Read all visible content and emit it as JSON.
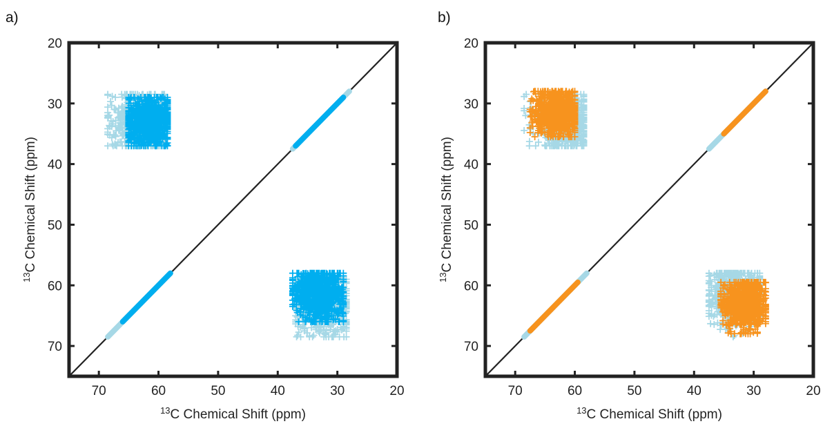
{
  "colors": {
    "frame": "#222222",
    "diagonal": "#222222",
    "light_blue": "#a6d8e6",
    "blue": "#00aeef",
    "orange": "#f7931e"
  },
  "chart_data": [
    {
      "panel_label": "a)",
      "type": "scatter",
      "xlabel": "C Chemical Shift (ppm)",
      "ylabel": "C Chemical Shift (ppm)",
      "label_superscript": "13",
      "xlim": [
        75,
        20
      ],
      "ylim": [
        20,
        75
      ],
      "x_reversed": true,
      "y_reversed": true,
      "xticks": [
        70,
        60,
        50,
        40,
        30,
        20
      ],
      "yticks": [
        20,
        30,
        40,
        50,
        60,
        70
      ],
      "diagonal": true,
      "series": [
        {
          "color_key": "light_blue",
          "marker": "+",
          "clusters": [
            {
              "center": [
                62.5,
                33.0
              ],
              "spread": [
                3.2,
                2.6
              ],
              "range_x": [
                59,
                68.5
              ],
              "range_y": [
                28.5,
                37
              ]
            },
            {
              "center": [
                32.5,
                62.5
              ],
              "spread": [
                2.6,
                3.2
              ],
              "range_x": [
                28.5,
                37
              ],
              "range_y": [
                59,
                68.5
              ]
            }
          ],
          "diagonal_segments": [
            [
              28,
              37.5
            ],
            [
              58,
              68.5
            ]
          ]
        },
        {
          "color_key": "blue",
          "marker": "+",
          "clusters": [
            {
              "center": [
                61.5,
                33.0
              ],
              "spread": [
                2.3,
                2.2
              ],
              "range_x": [
                58.5,
                65
              ],
              "range_y": [
                29,
                37
              ]
            },
            {
              "center": [
                33.0,
                61.5
              ],
              "spread": [
                2.2,
                2.3
              ],
              "range_x": [
                29,
                37.5
              ],
              "range_y": [
                58,
                66
              ]
            }
          ],
          "diagonal_segments": [
            [
              29,
              37
            ],
            [
              58,
              66
            ]
          ]
        }
      ]
    },
    {
      "panel_label": "b)",
      "type": "scatter",
      "xlabel": "C Chemical Shift (ppm)",
      "ylabel": "C Chemical Shift (ppm)",
      "label_superscript": "13",
      "xlim": [
        75,
        20
      ],
      "ylim": [
        20,
        75
      ],
      "x_reversed": true,
      "y_reversed": true,
      "xticks": [
        70,
        60,
        50,
        40,
        30,
        20
      ],
      "yticks": [
        20,
        30,
        40,
        50,
        60,
        70
      ],
      "diagonal": true,
      "series": [
        {
          "color_key": "light_blue",
          "marker": "+",
          "clusters": [
            {
              "center": [
                61.5,
                33.0
              ],
              "spread": [
                2.6,
                2.4
              ],
              "range_x": [
                58.5,
                68.5
              ],
              "range_y": [
                28.5,
                37
              ]
            },
            {
              "center": [
                33.0,
                61.5
              ],
              "spread": [
                2.4,
                2.6
              ],
              "range_x": [
                29,
                37.5
              ],
              "range_y": [
                58,
                68.5
              ]
            }
          ],
          "diagonal_segments": [
            [
              28,
              37.5
            ],
            [
              58,
              68.5
            ]
          ]
        },
        {
          "color_key": "orange",
          "marker": "+",
          "clusters": [
            {
              "center": [
                63.0,
                31.5
              ],
              "spread": [
                2.0,
                1.9
              ],
              "range_x": [
                60,
                67.5
              ],
              "range_y": [
                28,
                35.5
              ]
            },
            {
              "center": [
                31.5,
                63.0
              ],
              "spread": [
                1.9,
                2.0
              ],
              "range_x": [
                28,
                35.5
              ],
              "range_y": [
                59.5,
                68
              ]
            }
          ],
          "diagonal_segments": [
            [
              28,
              35
            ],
            [
              59.5,
              67.5
            ]
          ]
        }
      ]
    }
  ]
}
